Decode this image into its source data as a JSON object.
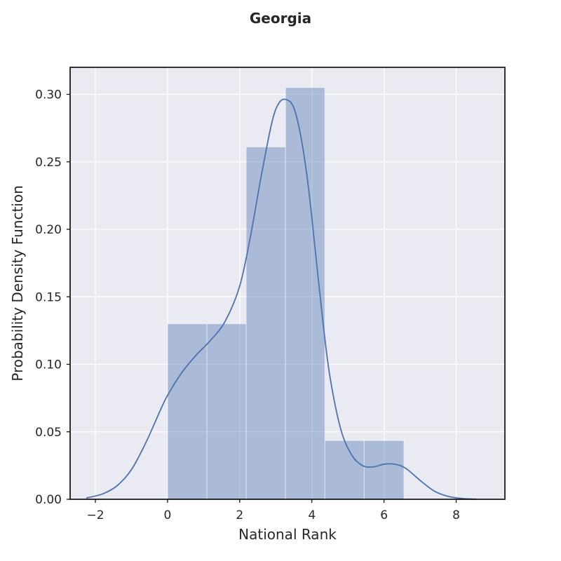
{
  "chart_data": {
    "type": "bar",
    "title": "Georgia",
    "xlabel": "National Rank",
    "ylabel": "Probability Density Function",
    "xlim": [
      -2.7,
      9.35
    ],
    "ylim": [
      0,
      0.32
    ],
    "xticks": [
      -2,
      0,
      2,
      4,
      6,
      8
    ],
    "yticks": [
      0.0,
      0.05,
      0.1,
      0.15,
      0.2,
      0.25,
      0.3
    ],
    "xtick_labels": [
      "−2",
      "0",
      "2",
      "4",
      "6",
      "8"
    ],
    "ytick_labels": [
      "0.00",
      "0.05",
      "0.10",
      "0.15",
      "0.20",
      "0.25",
      "0.30"
    ],
    "grid": true,
    "histogram": {
      "bin_edges": [
        0.0,
        1.09,
        2.18,
        3.27,
        4.36,
        5.45,
        6.55
      ],
      "values": [
        0.13,
        0.13,
        0.261,
        0.305,
        0.0435,
        0.0435
      ]
    },
    "kde": {
      "x": [
        -2.25,
        -1.8,
        -1.4,
        -1.0,
        -0.6,
        -0.2,
        0.0,
        0.4,
        0.8,
        1.2,
        1.6,
        2.0,
        2.3,
        2.6,
        2.9,
        3.1,
        3.3,
        3.5,
        3.7,
        3.9,
        4.1,
        4.3,
        4.5,
        4.8,
        5.1,
        5.4,
        5.7,
        6.0,
        6.3,
        6.6,
        7.0,
        7.4,
        7.8,
        8.2,
        8.55
      ],
      "y": [
        0.001,
        0.004,
        0.01,
        0.022,
        0.042,
        0.066,
        0.077,
        0.094,
        0.107,
        0.118,
        0.132,
        0.158,
        0.195,
        0.24,
        0.28,
        0.294,
        0.296,
        0.29,
        0.268,
        0.232,
        0.183,
        0.133,
        0.091,
        0.052,
        0.033,
        0.025,
        0.024,
        0.026,
        0.026,
        0.023,
        0.014,
        0.006,
        0.002,
        0.0005,
        0.0001
      ]
    },
    "colors": {
      "background": "#eaeaf2",
      "grid": "#ffffff",
      "bar_fill": "#4c72b0",
      "bar_opacity": 0.4,
      "line": "#4c72b0",
      "frame": "#000000"
    }
  }
}
